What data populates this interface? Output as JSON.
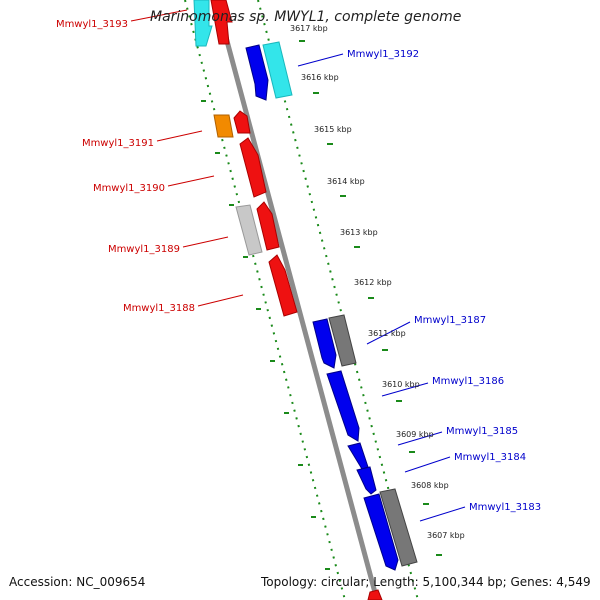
{
  "title": "Marinomonas sp. MWYL1, complete genome",
  "footer": {
    "accession": "Accession: NC_009654",
    "summary": "Topology: circular; Length: 5,100,344 bp; Genes: 4,549"
  },
  "colors": {
    "forward_label": "#cc0000",
    "reverse_label": "#0000cc",
    "axis": "#888888",
    "dots": "#1a8a1a"
  },
  "ticks": [
    "3617 kbp",
    "3616 kbp",
    "3615 kbp",
    "3614 kbp",
    "3613 kbp",
    "3612 kbp",
    "3611 kbp",
    "3610 kbp",
    "3609 kbp",
    "3608 kbp",
    "3607 kbp"
  ],
  "left_labels": [
    "Mmwyl1_3193",
    "Mmwyl1_3191",
    "Mmwyl1_3190",
    "Mmwyl1_3189",
    "Mmwyl1_3188"
  ],
  "right_labels": [
    "Mmwyl1_3192",
    "Mmwyl1_3187",
    "Mmwyl1_3186",
    "Mmwyl1_3185",
    "Mmwyl1_3184",
    "Mmwyl1_3183"
  ]
}
